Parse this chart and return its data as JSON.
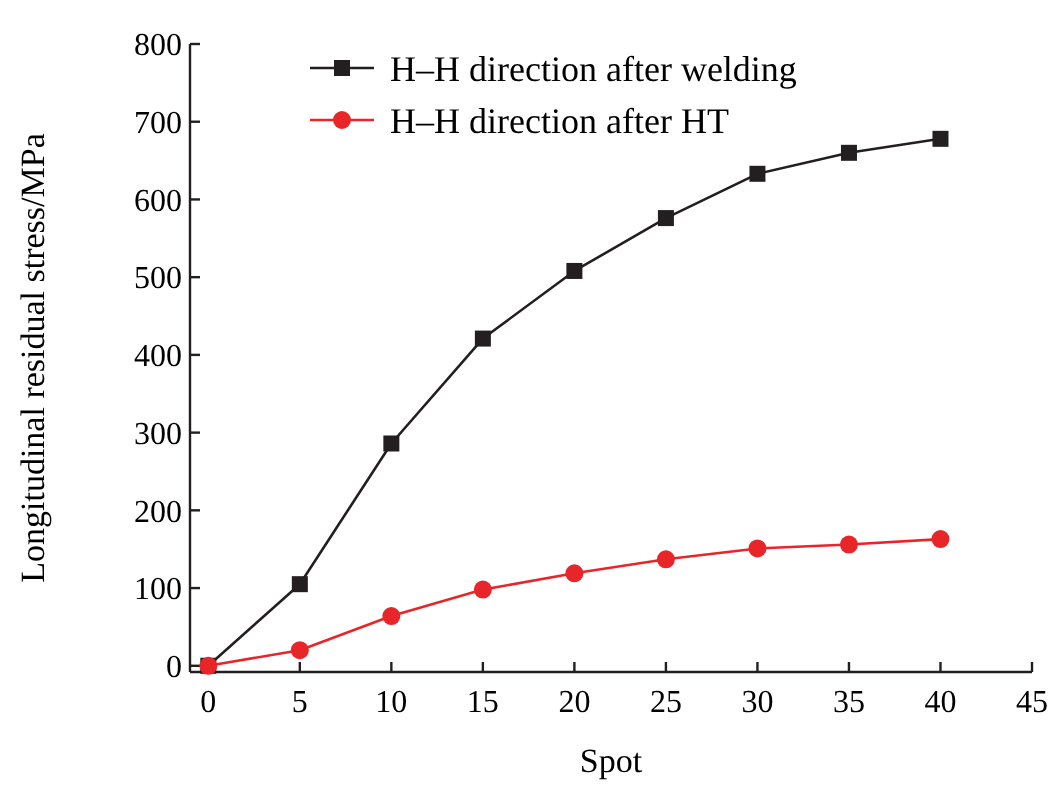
{
  "chart_data": {
    "type": "line",
    "xlabel": "Spot",
    "ylabel": "Longitudinal residual stress/MPa",
    "x": [
      0,
      5,
      10,
      15,
      20,
      25,
      30,
      35,
      40
    ],
    "series": [
      {
        "name": "H–H direction after welding",
        "color": "#231f20",
        "values": [
          0,
          105,
          286,
          421,
          508,
          576,
          633,
          660,
          678
        ],
        "marker": "square"
      },
      {
        "name": "H–H direction after HT",
        "color": "#e8262a",
        "values": [
          0,
          20,
          64,
          98,
          119,
          137,
          151,
          156,
          163
        ],
        "marker": "circle"
      }
    ],
    "xlim": [
      -1,
      45
    ],
    "ylim": [
      -8,
      800
    ],
    "xticks": [
      0,
      5,
      10,
      15,
      20,
      25,
      30,
      35,
      40,
      45
    ],
    "yticks": [
      0,
      100,
      200,
      300,
      400,
      500,
      600,
      700,
      800
    ],
    "grid": false,
    "legend": "top left",
    "line_style": "solid"
  }
}
